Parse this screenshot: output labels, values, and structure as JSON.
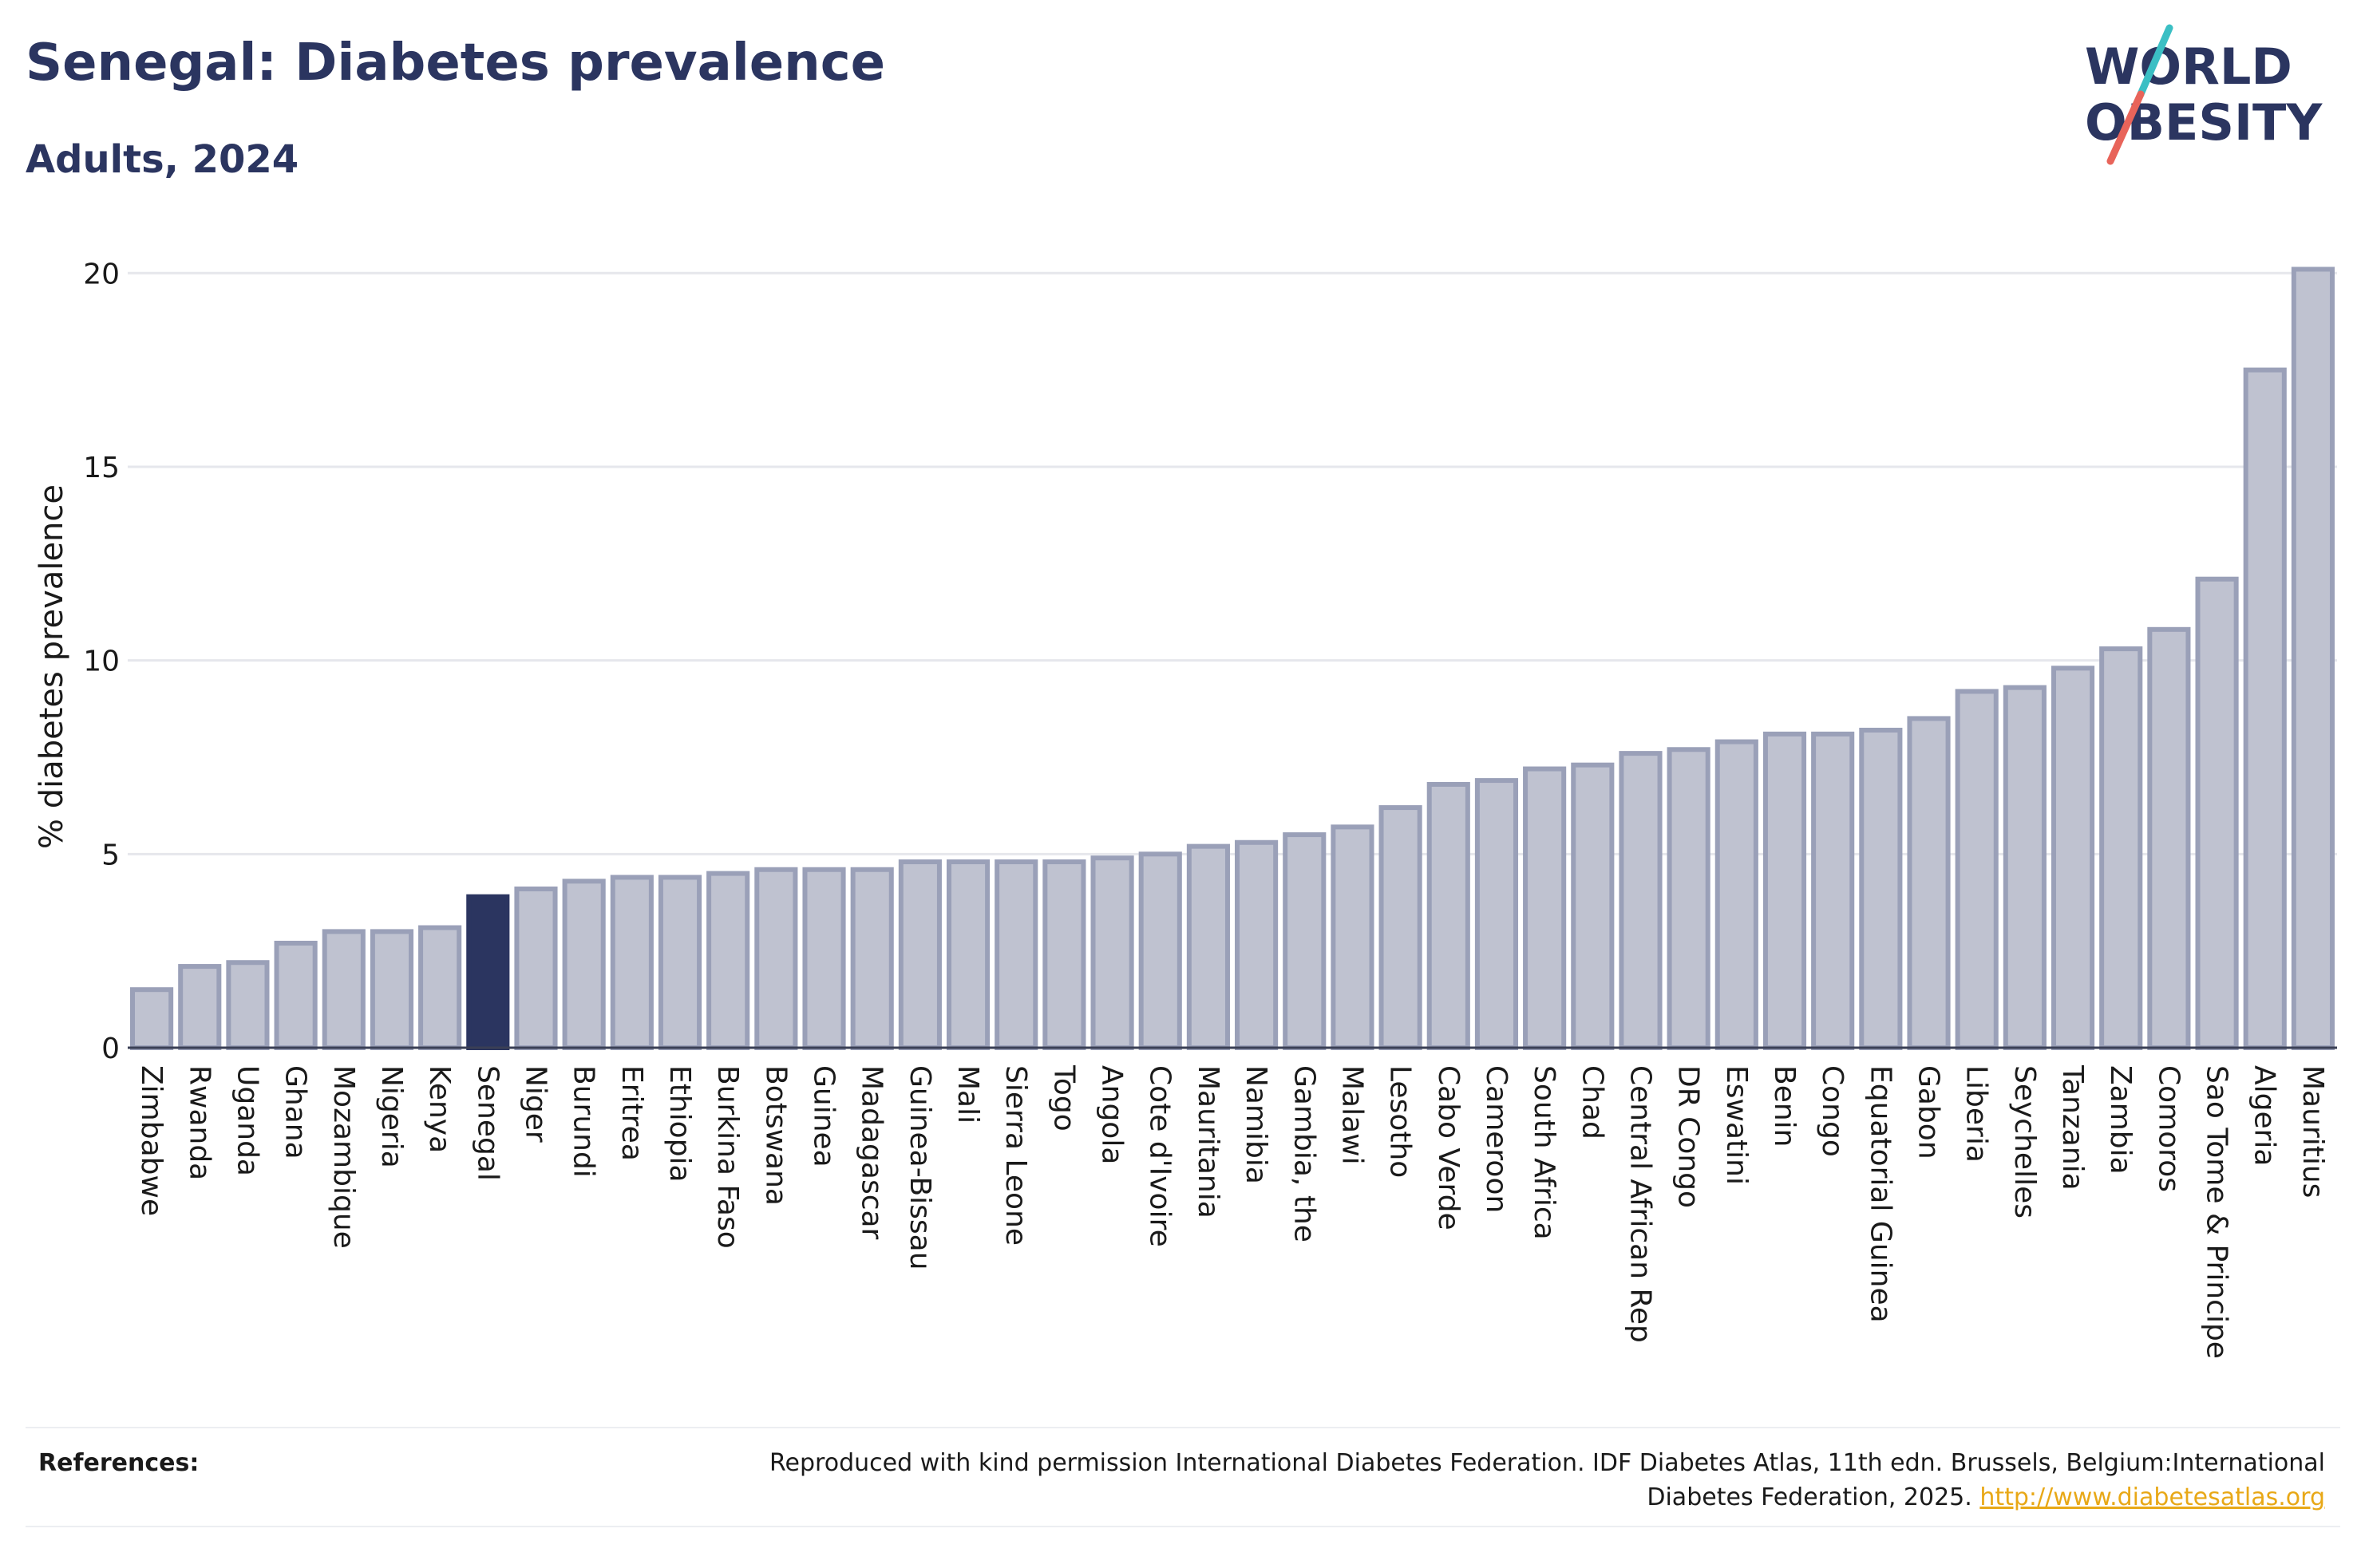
{
  "header": {
    "title": "Senegal: Diabetes prevalence",
    "subtitle": "Adults, 2024"
  },
  "logo": {
    "line1": "WORLD",
    "line2": "OBESITY"
  },
  "colors": {
    "bar_default_fill": "#bfc2d0",
    "bar_default_stroke": "#9aa0b8",
    "bar_highlight": "#2b3560",
    "title": "#2b3560",
    "link": "#e8a817",
    "logo_teal": "#3bbfc4",
    "logo_red": "#e8645a"
  },
  "chart_data": {
    "type": "bar",
    "title": "Senegal: Diabetes prevalence",
    "subtitle": "Adults, 2024",
    "xlabel": "",
    "ylabel": "% diabetes prevalence",
    "ylim": [
      0,
      20.5
    ],
    "yticks": [
      0,
      5,
      10,
      15,
      20
    ],
    "grid": true,
    "legend": "none",
    "highlight": "Senegal",
    "categories": [
      "Zimbabwe",
      "Rwanda",
      "Uganda",
      "Ghana",
      "Mozambique",
      "Nigeria",
      "Kenya",
      "Senegal",
      "Niger",
      "Burundi",
      "Eritrea",
      "Ethiopia",
      "Burkina Faso",
      "Botswana",
      "Guinea",
      "Madagascar",
      "Guinea-Bissau",
      "Mali",
      "Sierra Leone",
      "Togo",
      "Angola",
      "Cote d'Ivoire",
      "Mauritania",
      "Namibia",
      "Gambia, the",
      "Malawi",
      "Lesotho",
      "Cabo Verde",
      "Cameroon",
      "South Africa",
      "Chad",
      "Central African Rep",
      "DR Congo",
      "Eswatini",
      "Benin",
      "Congo",
      "Equatorial Guinea",
      "Gabon",
      "Liberia",
      "Seychelles",
      "Tanzania",
      "Zambia",
      "Comoros",
      "Sao Tome & Principe",
      "Algeria",
      "Mauritius"
    ],
    "values": [
      1.5,
      2.1,
      2.2,
      2.7,
      3.0,
      3.0,
      3.1,
      3.9,
      4.1,
      4.3,
      4.4,
      4.4,
      4.5,
      4.6,
      4.6,
      4.6,
      4.8,
      4.8,
      4.8,
      4.8,
      4.9,
      5.0,
      5.2,
      5.3,
      5.5,
      5.7,
      6.2,
      6.8,
      6.9,
      7.2,
      7.3,
      7.6,
      7.7,
      7.9,
      8.1,
      8.1,
      8.2,
      8.5,
      9.2,
      9.3,
      9.8,
      10.3,
      10.8,
      12.1,
      17.5,
      20.1
    ]
  },
  "references": {
    "label": "References:",
    "text": "Reproduced with kind permission International Diabetes Federation. IDF Diabetes Atlas, 11th edn. Brussels, Belgium:International Diabetes Federation, 2025.",
    "link": "http://www.diabetesatlas.org"
  }
}
